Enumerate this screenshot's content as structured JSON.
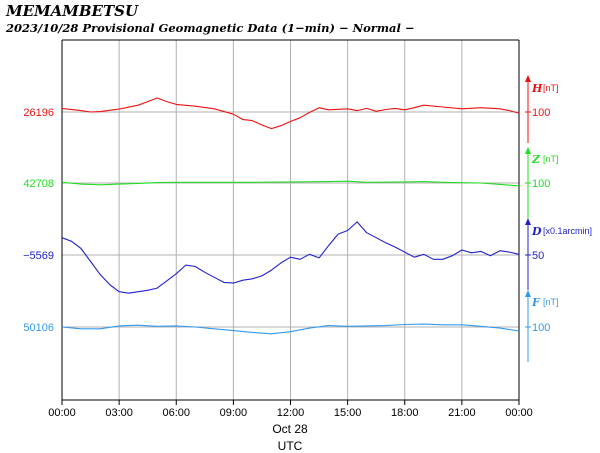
{
  "chart_data": {
    "type": "line",
    "title": "MEMAMBETSU",
    "subtitle": "2023/10/28  Provisional Geomagnetic Data (1−min)  − Normal −",
    "xlabel": "UTC",
    "date_label": "Oct 28",
    "x_ticks": [
      "00:00",
      "03:00",
      "06:00",
      "09:00",
      "12:00",
      "15:00",
      "18:00",
      "21:00",
      "00:00"
    ],
    "xlim": [
      0,
      24
    ],
    "grid": true,
    "series": [
      {
        "name": "H",
        "unit": "[nT]",
        "ref_value": "26196",
        "scale_label": "100",
        "color": "#ee1111",
        "x": [
          0,
          1,
          1.5,
          2,
          3,
          4,
          4.5,
          5,
          5.5,
          6,
          7,
          8,
          9,
          9.5,
          10,
          10.5,
          11,
          11.5,
          12,
          12.5,
          13,
          13.5,
          14,
          15,
          15.5,
          16,
          16.5,
          17,
          17.5,
          18,
          18.5,
          19,
          20,
          21,
          22,
          23,
          23.5,
          24
        ],
        "values": [
          26206,
          26200,
          26196,
          26197,
          26204,
          26215,
          26225,
          26235,
          26225,
          26217,
          26212,
          26205,
          26190,
          26175,
          26172,
          26160,
          26150,
          26158,
          26170,
          26180,
          26195,
          26208,
          26202,
          26205,
          26200,
          26206,
          26198,
          26203,
          26206,
          26202,
          26208,
          26215,
          26210,
          26205,
          26208,
          26205,
          26200,
          26193
        ]
      },
      {
        "name": "Z",
        "unit": "[nT]",
        "ref_value": "42708",
        "scale_label": "100",
        "color": "#22dd22",
        "x": [
          0,
          1,
          2,
          3,
          4,
          5,
          6,
          8,
          10,
          12,
          14,
          15,
          16,
          18,
          19,
          20,
          22,
          23,
          24
        ],
        "values": [
          42710,
          42705,
          42703,
          42705,
          42707,
          42709,
          42710,
          42710,
          42710,
          42711,
          42712,
          42713,
          42710,
          42711,
          42712,
          42710,
          42708,
          42704,
          42700
        ]
      },
      {
        "name": "D",
        "unit": "[x0.1arcmin]",
        "ref_value": "−5569",
        "scale_label": "50",
        "color": "#2222cc",
        "x": [
          0,
          0.5,
          1,
          1.5,
          2,
          2.5,
          3,
          3.5,
          4,
          4.5,
          5,
          5.5,
          6,
          6.5,
          7,
          7.5,
          8,
          8.5,
          9,
          9.5,
          10,
          10.5,
          11,
          11.5,
          12,
          12.5,
          13,
          13.5,
          14,
          14.5,
          15,
          15.5,
          16,
          16.5,
          17,
          17.5,
          18,
          18.5,
          19,
          19.5,
          20,
          20.5,
          21,
          21.5,
          22,
          22.5,
          23,
          23.5,
          24
        ],
        "values": [
          -5545,
          -5550,
          -5560,
          -5578,
          -5596,
          -5610,
          -5620,
          -5622,
          -5620,
          -5618,
          -5615,
          -5605,
          -5595,
          -5583,
          -5585,
          -5593,
          -5600,
          -5607,
          -5608,
          -5604,
          -5602,
          -5598,
          -5590,
          -5580,
          -5572,
          -5575,
          -5568,
          -5573,
          -5556,
          -5540,
          -5535,
          -5523,
          -5538,
          -5545,
          -5552,
          -5558,
          -5565,
          -5572,
          -5568,
          -5575,
          -5575,
          -5570,
          -5562,
          -5566,
          -5564,
          -5570,
          -5563,
          -5565,
          -5568
        ]
      },
      {
        "name": "F",
        "unit": "[nT]",
        "ref_value": "50106",
        "scale_label": "100",
        "color": "#3399ee",
        "x": [
          0,
          1,
          2,
          3,
          4,
          5,
          6,
          7,
          8,
          9,
          10,
          11,
          12,
          13,
          14,
          15,
          16,
          17,
          18,
          19,
          20,
          21,
          22,
          23,
          24
        ],
        "values": [
          50106,
          50101,
          50101,
          50109,
          50111,
          50108,
          50109,
          50106,
          50101,
          50096,
          50091,
          50087,
          50093,
          50103,
          50110,
          50108,
          50109,
          50110,
          50113,
          50114,
          50112,
          50112,
          50108,
          50103,
          50095
        ]
      }
    ]
  }
}
